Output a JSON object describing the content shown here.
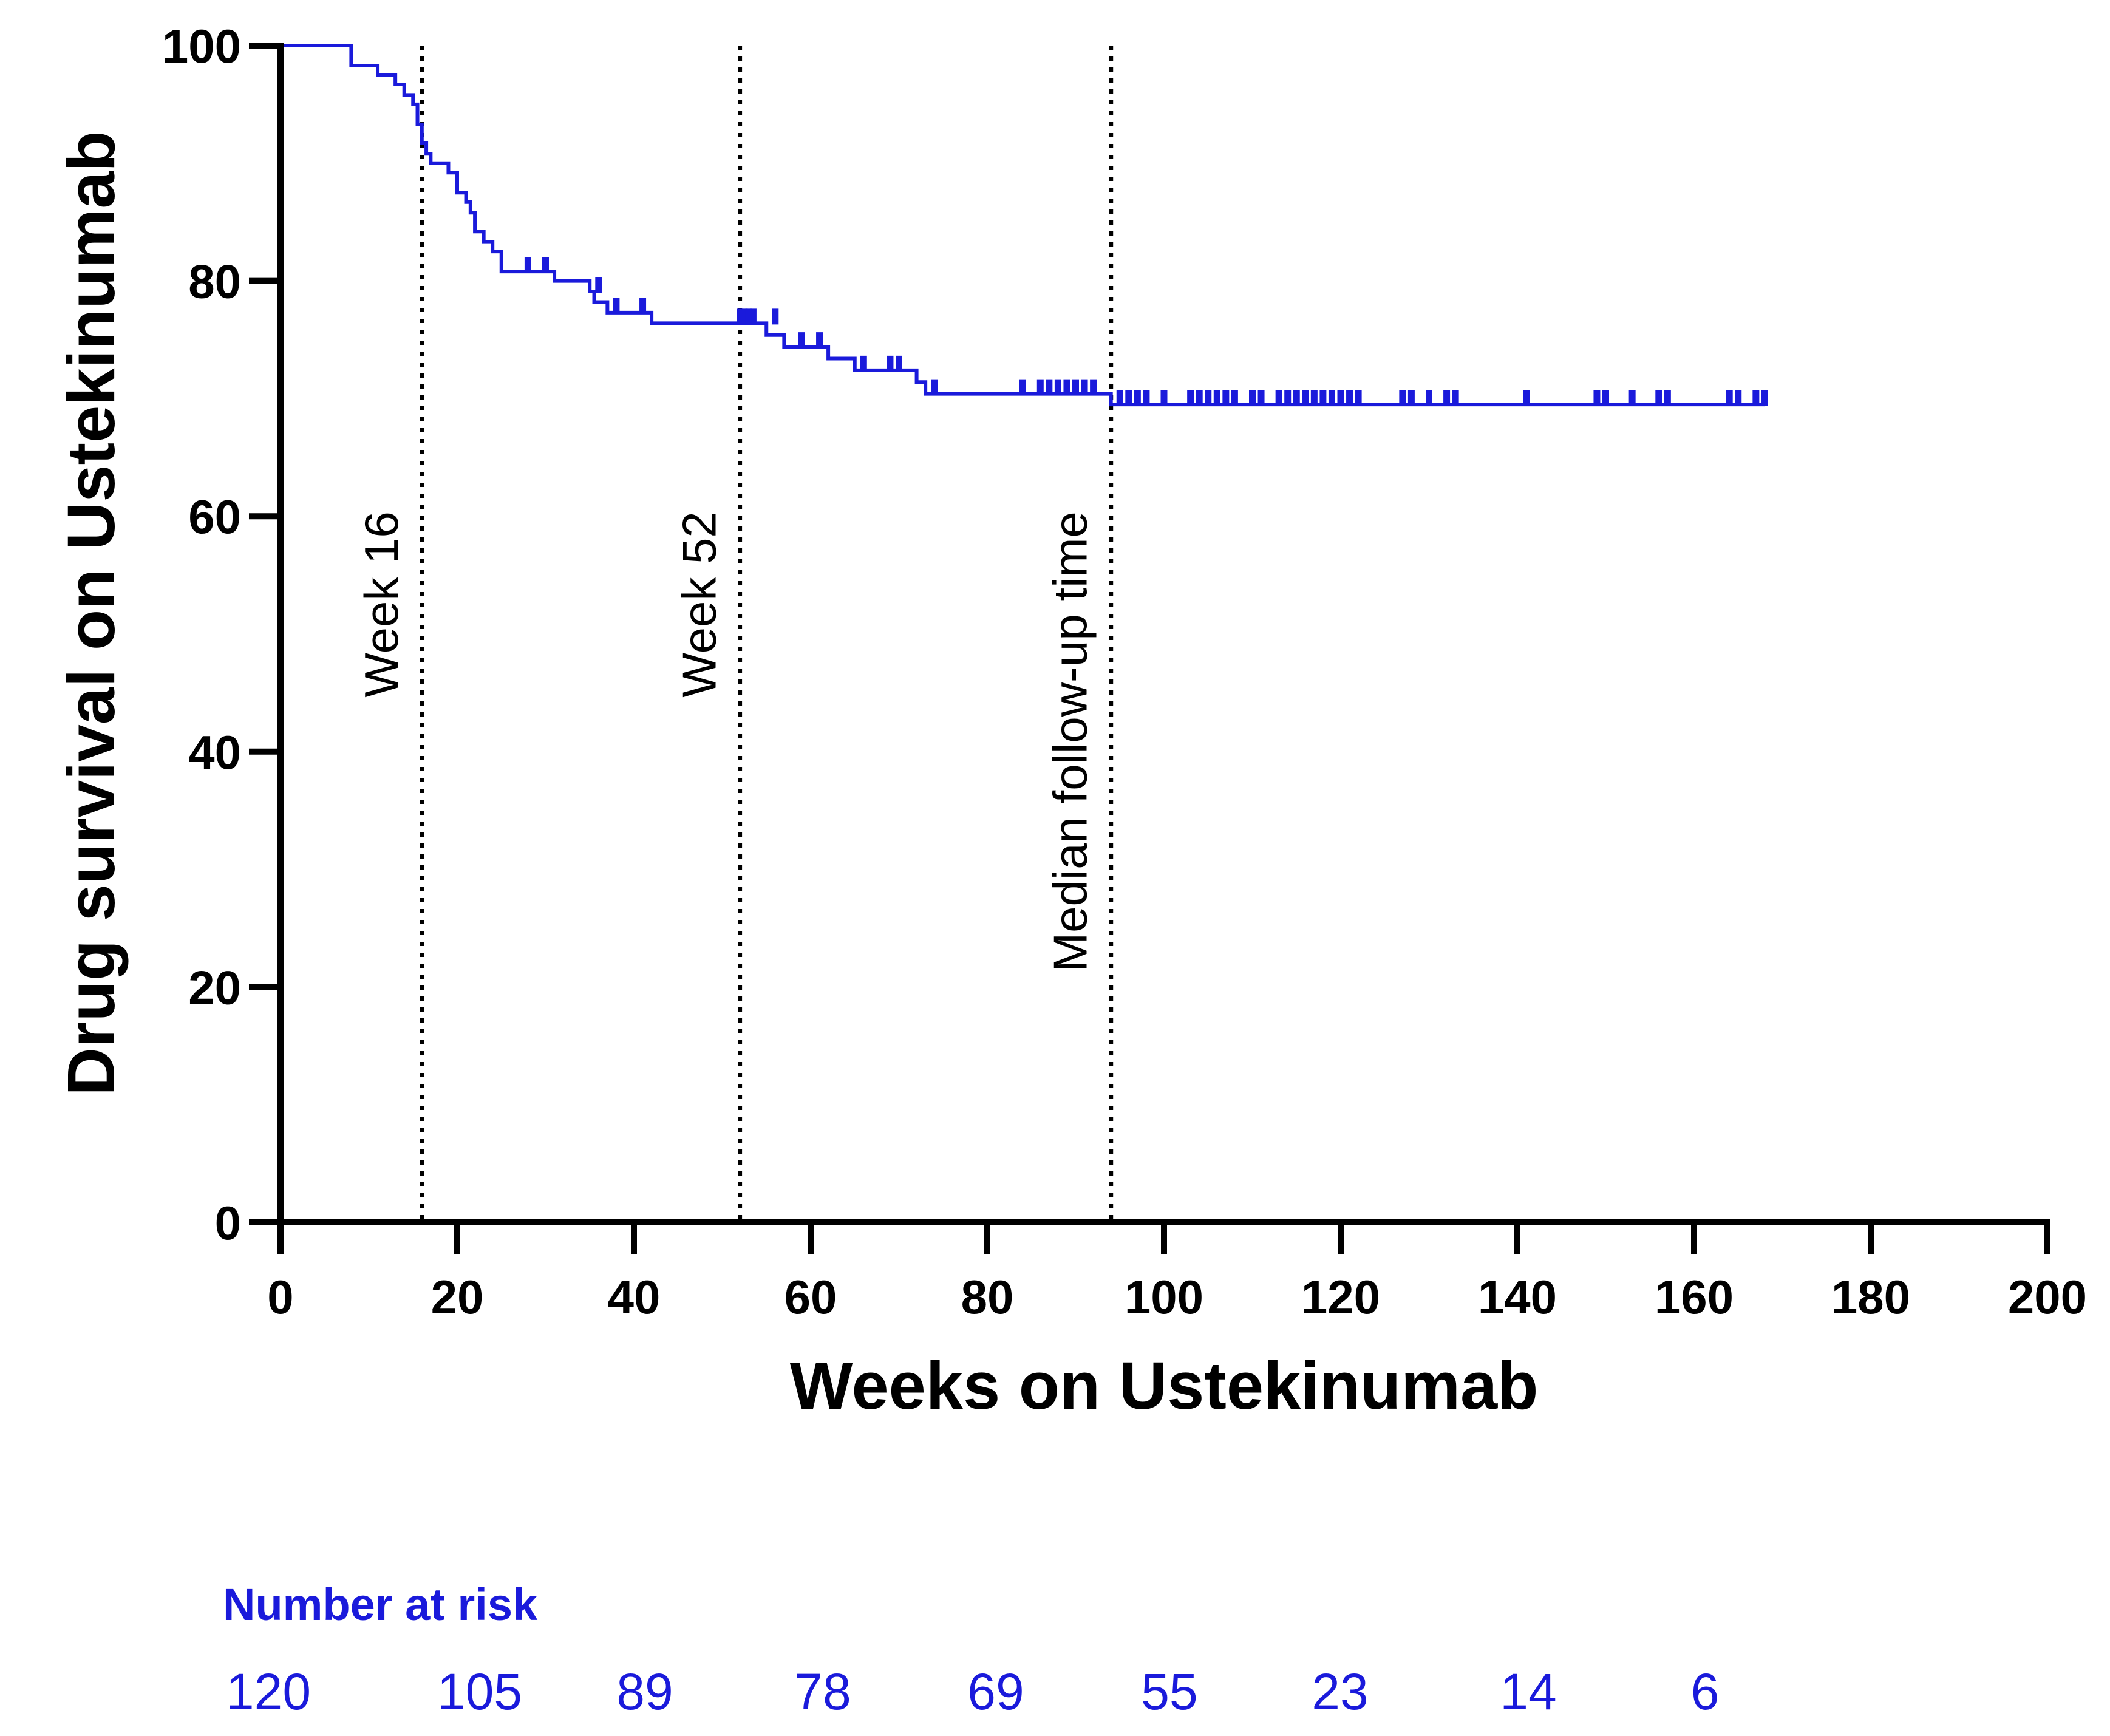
{
  "chart_data": {
    "type": "line",
    "subtype": "kaplan-meier",
    "title": "",
    "xlabel": "Weeks on Ustekinumab",
    "ylabel": "Drug survival on Ustekinumab",
    "xlim": [
      0,
      200
    ],
    "ylim": [
      0,
      100
    ],
    "xticks": [
      0,
      20,
      40,
      60,
      80,
      100,
      120,
      140,
      160,
      180,
      200
    ],
    "yticks": [
      0,
      20,
      40,
      60,
      80,
      100
    ],
    "line_color": "#1a1adb",
    "axis_color": "#000000",
    "series": [
      {
        "name": "Ustekinumab",
        "steps": [
          [
            0,
            100
          ],
          [
            8,
            98.3
          ],
          [
            11,
            97.5
          ],
          [
            13,
            96.7
          ],
          [
            14,
            95.8
          ],
          [
            15,
            95
          ],
          [
            15.5,
            93.3
          ],
          [
            16,
            91.7
          ],
          [
            16.5,
            90.8
          ],
          [
            17,
            90
          ],
          [
            19,
            89.2
          ],
          [
            20,
            87.5
          ],
          [
            21,
            86.7
          ],
          [
            21.5,
            85.8
          ],
          [
            22,
            84.2
          ],
          [
            23,
            83.3
          ],
          [
            24,
            82.5
          ],
          [
            25,
            80.8
          ],
          [
            31,
            80
          ],
          [
            35,
            79.1
          ],
          [
            35.5,
            78.2
          ],
          [
            37,
            77.3
          ],
          [
            42,
            76.4
          ],
          [
            55,
            75.4
          ],
          [
            57,
            74.4
          ],
          [
            62,
            73.4
          ],
          [
            65,
            72.4
          ],
          [
            72,
            71.4
          ],
          [
            73,
            70.4
          ],
          [
            94,
            69.5
          ],
          [
            168,
            69.5
          ]
        ],
        "censored": [
          [
            28,
            80.8
          ],
          [
            30,
            80.8
          ],
          [
            36,
            79.1
          ],
          [
            38,
            77.3
          ],
          [
            41,
            77.3
          ],
          [
            52,
            76.4
          ],
          [
            52.5,
            76.4
          ],
          [
            53,
            76.4
          ],
          [
            53.5,
            76.4
          ],
          [
            56,
            76.4
          ],
          [
            59,
            74.4
          ],
          [
            61,
            74.4
          ],
          [
            66,
            72.4
          ],
          [
            69,
            72.4
          ],
          [
            70,
            72.4
          ],
          [
            74,
            70.4
          ],
          [
            84,
            70.4
          ],
          [
            86,
            70.4
          ],
          [
            87,
            70.4
          ],
          [
            88,
            70.4
          ],
          [
            89,
            70.4
          ],
          [
            90,
            70.4
          ],
          [
            91,
            70.4
          ],
          [
            92,
            70.4
          ],
          [
            95,
            69.5
          ],
          [
            96,
            69.5
          ],
          [
            97,
            69.5
          ],
          [
            98,
            69.5
          ],
          [
            100,
            69.5
          ],
          [
            103,
            69.5
          ],
          [
            104,
            69.5
          ],
          [
            105,
            69.5
          ],
          [
            106,
            69.5
          ],
          [
            107,
            69.5
          ],
          [
            108,
            69.5
          ],
          [
            110,
            69.5
          ],
          [
            111,
            69.5
          ],
          [
            113,
            69.5
          ],
          [
            114,
            69.5
          ],
          [
            115,
            69.5
          ],
          [
            116,
            69.5
          ],
          [
            117,
            69.5
          ],
          [
            118,
            69.5
          ],
          [
            119,
            69.5
          ],
          [
            120,
            69.5
          ],
          [
            121,
            69.5
          ],
          [
            122,
            69.5
          ],
          [
            127,
            69.5
          ],
          [
            128,
            69.5
          ],
          [
            130,
            69.5
          ],
          [
            132,
            69.5
          ],
          [
            133,
            69.5
          ],
          [
            141,
            69.5
          ],
          [
            149,
            69.5
          ],
          [
            150,
            69.5
          ],
          [
            153,
            69.5
          ],
          [
            156,
            69.5
          ],
          [
            157,
            69.5
          ],
          [
            164,
            69.5
          ],
          [
            165,
            69.5
          ],
          [
            167,
            69.5
          ],
          [
            168,
            69.5
          ]
        ]
      }
    ],
    "reference_lines": [
      {
        "x": 16,
        "label": "Week 16"
      },
      {
        "x": 52,
        "label": "Week 52"
      },
      {
        "x": 94,
        "label": "Median follow-up time"
      }
    ],
    "risk_table": {
      "title": "Number at risk",
      "values": [
        "120",
        "105",
        "89",
        "78",
        "69",
        "55",
        "23",
        "14",
        "6"
      ]
    }
  }
}
